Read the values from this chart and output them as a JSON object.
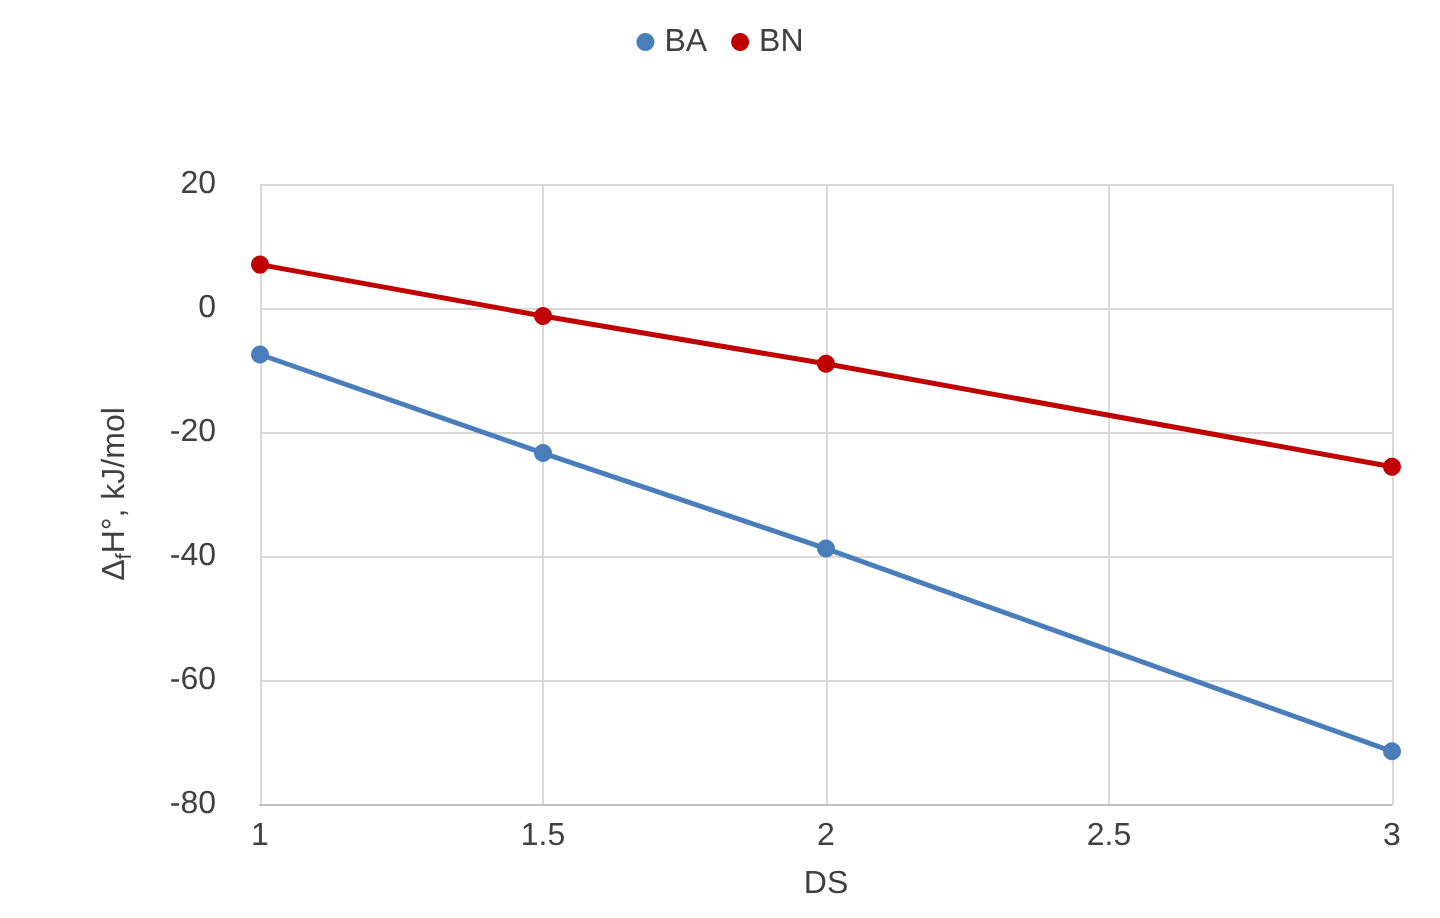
{
  "chart_data": {
    "type": "line",
    "xlabel": "DS",
    "ylabel": "Δ$_{f}$H°, kJ/mol",
    "x": [
      1,
      1.5,
      2,
      3
    ],
    "series": [
      {
        "name": "BA",
        "color": "#4a7ebb",
        "values": [
          -7.5,
          -23.4,
          -38.8,
          -71.5
        ]
      },
      {
        "name": "BN",
        "color": "#c00000",
        "values": [
          7,
          -1.3,
          -9,
          -25.6
        ]
      }
    ],
    "xlim": [
      1,
      3
    ],
    "xticks": [
      1,
      1.5,
      2,
      2.5,
      3
    ],
    "ylim": [
      -80,
      20
    ],
    "yticks": [
      -80,
      -60,
      -40,
      -20,
      0,
      20
    ],
    "grid": true,
    "legend": "top",
    "marker": "circle",
    "line_style": "solid"
  }
}
